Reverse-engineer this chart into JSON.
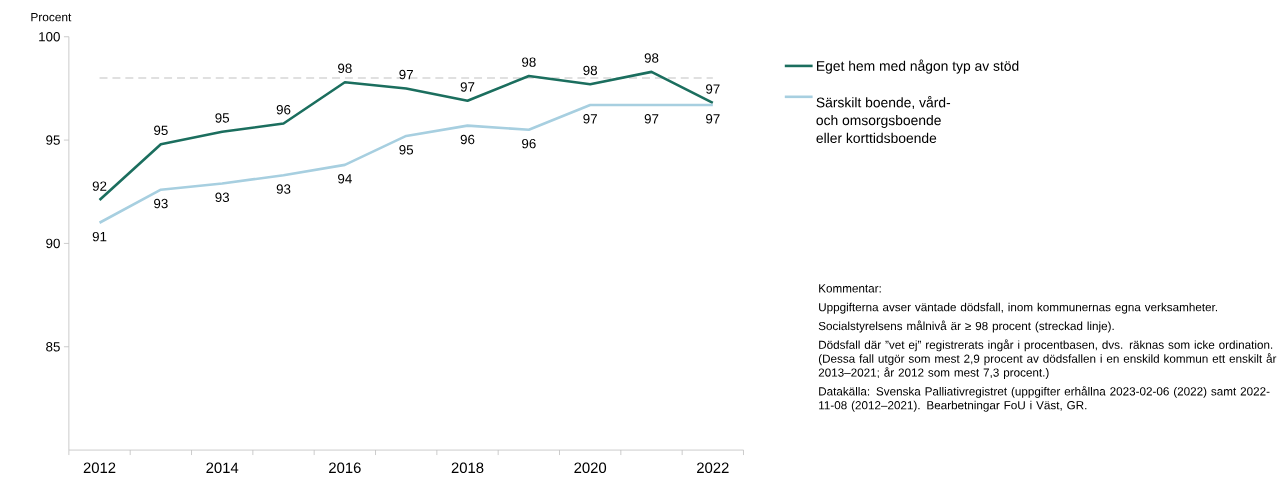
{
  "chart_data": {
    "type": "line",
    "ylabel": "Procent",
    "x": [
      2012,
      2013,
      2014,
      2015,
      2016,
      2017,
      2018,
      2019,
      2020,
      2021,
      2022
    ],
    "series": [
      {
        "name": "Eget hem med någon typ av stöd",
        "color": "#1b6e5e",
        "values": [
          92.1,
          94.8,
          95.4,
          95.8,
          97.8,
          97.5,
          96.9,
          98.1,
          97.7,
          98.3,
          96.8
        ],
        "value_labels": [
          "92",
          "95",
          "95",
          "96",
          "98",
          "97",
          "97",
          "98",
          "98",
          "98",
          "97"
        ]
      },
      {
        "name": "Särskilt boende, vård- och omsorgsboende eller korttidsboende",
        "color": "#a7cfe0",
        "values": [
          91.0,
          92.6,
          92.9,
          93.3,
          93.8,
          95.2,
          95.7,
          95.5,
          96.7,
          96.7,
          96.7
        ],
        "value_labels": [
          "91",
          "93",
          "93",
          "93",
          "94",
          "95",
          "96",
          "96",
          "97",
          "97",
          "97"
        ]
      }
    ],
    "xlim": [
      2011.5,
      2022.5
    ],
    "ylim": [
      80,
      100
    ],
    "xticks": [
      2012,
      2014,
      2016,
      2018,
      2020,
      2022,
      {
        "value": 2011.5,
        "label": null
      },
      {
        "value": 2012.5,
        "label": null
      },
      {
        "value": 2013.5,
        "label": null
      },
      {
        "value": 2014.5,
        "label": null
      },
      {
        "value": 2015.5,
        "label": null
      },
      {
        "value": 2016.5,
        "label": null
      },
      {
        "value": 2017.5,
        "label": null
      },
      {
        "value": 2018.5,
        "label": null
      },
      {
        "value": 2019.5,
        "label": null
      },
      {
        "value": 2020.5,
        "label": null
      },
      {
        "value": 2021.5,
        "label": null
      },
      {
        "value": 2022.5,
        "label": null
      }
    ],
    "yticks": [
      85,
      90,
      95,
      100
    ],
    "ref_lines": [
      {
        "axis": "y",
        "value": 98,
        "color": "#d6d6d6",
        "line_style": "dashed"
      }
    ],
    "legend": "right",
    "marker": "none",
    "line_style": "solid",
    "annotations": [
      "Kommentar:",
      "Uppgifterna avser väntade dödsfall, inom kommunernas egna verksamheter.",
      "Socialstyrelsens målnivå är ≥ 98 procent (streckad linje).",
      "Dödsfall där ”vet ej” registrerats ingår i procentbasen, dvs. räknas som icke ordination. (Dessa fall utgör som mest 2,9 procent av dödsfallen i en enskild kommun ett enskilt år 2013–2021; år 2012 som mest 7,3 procent.)",
      "Datakälla: Svenska Palliativregistret (uppgifter erhållna 2023-02-06 (2022) samt 2022-11-08 (2012–2021). Bearbetningar FoU i Väst, GR."
    ]
  }
}
